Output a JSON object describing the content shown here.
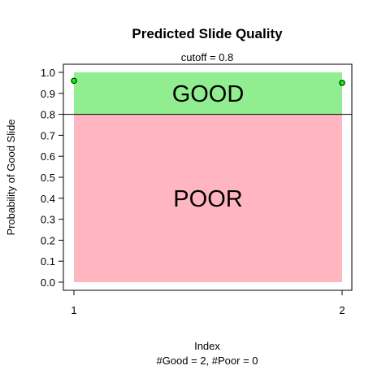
{
  "chart_data": {
    "type": "scatter",
    "title": "Predicted Slide Quality",
    "subtitle": "cutoff = 0.8",
    "xlabel": "Index",
    "x_caption": "#Good = 2, #Poor = 0",
    "ylabel": "Probability of Good Slide",
    "xlim": [
      1,
      2
    ],
    "ylim": [
      0,
      1
    ],
    "x_ticks": [
      1,
      2
    ],
    "y_ticks": [
      0.0,
      0.1,
      0.2,
      0.3,
      0.4,
      0.5,
      0.6,
      0.7,
      0.8,
      0.9,
      1.0
    ],
    "cutoff": 0.8,
    "points": [
      {
        "x": 1,
        "y": 0.96
      },
      {
        "x": 2,
        "y": 0.95
      }
    ],
    "regions": [
      {
        "label": "GOOD",
        "from": 0.8,
        "to": 1.0,
        "color": "#90ee90"
      },
      {
        "label": "POOR",
        "from": 0.0,
        "to": 0.8,
        "color": "#ffb6c1"
      }
    ],
    "point_color": "#00ff00",
    "grid": false,
    "legend": "none"
  }
}
